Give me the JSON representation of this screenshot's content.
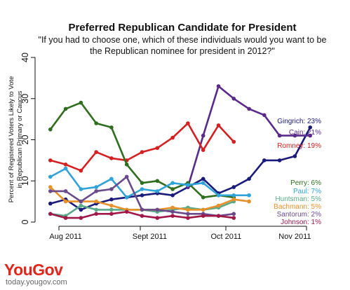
{
  "chart_data": {
    "type": "line",
    "title": "Preferred Republican Candidate for President",
    "subtitle": "\"If you had to choose one, which of these individuals would you want to be the Republican nominee for president in 2012?\"",
    "ylabel_line1": "Percent of Registered Voters Likely to Vote",
    "ylabel_line2": "in Republican Primary or Caucus",
    "ylim": [
      0,
      40
    ],
    "yticks": [
      "0",
      "10",
      "20",
      "30",
      "40"
    ],
    "xlim": [
      0,
      19
    ],
    "x_tick_labels": [
      {
        "label": "Aug 2011",
        "x": 2
      },
      {
        "label": "Sept 2011",
        "x": 7.5
      },
      {
        "label": "Oct 2011",
        "x": 12.5
      },
      {
        "label": "Nov 2011",
        "x": 17
      }
    ],
    "x": [
      1,
      2,
      3,
      4,
      5,
      6,
      7,
      8,
      9,
      10,
      11,
      12,
      13,
      14,
      15,
      16,
      17,
      18
    ],
    "series": [
      {
        "name": "Gingrich",
        "color": "#1a1a7a",
        "label": "Gingrich: 23%",
        "values": [
          4.5,
          5.5,
          3,
          4.5,
          5.5,
          6,
          6.5,
          7,
          6.5,
          8.5,
          10.5,
          7,
          8.5,
          10.5,
          15,
          15,
          16,
          23
        ]
      },
      {
        "name": "Cain",
        "color": "#5a2a8a",
        "label": "Cain: 21%",
        "values": [
          null,
          null,
          null,
          null,
          null,
          null,
          null,
          null,
          null,
          8.5,
          21,
          33,
          30,
          27.5,
          26,
          21,
          21,
          21
        ]
      },
      {
        "name": "Romney",
        "color": "#d42020",
        "label": "Romney: 19%",
        "values": [
          15,
          14,
          12.5,
          17,
          15.5,
          15,
          17,
          18,
          20.5,
          24,
          17.5,
          23.5,
          19.5,
          null,
          null,
          null,
          null,
          null
        ]
      },
      {
        "name": "Perry",
        "color": "#2e6e1e",
        "label": "Perry: 6%",
        "values": [
          22.5,
          27.5,
          29,
          24,
          23,
          14,
          9.5,
          10,
          8,
          9.5,
          6,
          6.5,
          6,
          null,
          null,
          null,
          null,
          null
        ]
      },
      {
        "name": "Paul",
        "color": "#2fa3d8",
        "label": "Paul: 7%",
        "values": [
          11,
          13,
          8,
          8.5,
          10.5,
          6,
          8,
          7.5,
          9.5,
          9,
          9.5,
          6.5,
          6.5,
          6.5,
          null,
          null,
          null,
          null
        ]
      },
      {
        "name": "Huntsman",
        "color": "#5aaa8a",
        "label": "Huntsman: 5%",
        "values": [
          2,
          1.5,
          4,
          3,
          3,
          3,
          3,
          2.5,
          3,
          3.5,
          3,
          3.5,
          5,
          null,
          null,
          null,
          null,
          null
        ]
      },
      {
        "name": "Bachmann",
        "color": "#e8902a",
        "label": "Bachmann: 5%",
        "values": [
          8.5,
          5,
          5,
          5,
          4,
          3,
          3,
          3,
          3.5,
          3,
          3,
          4,
          5.5,
          5,
          null,
          null,
          null,
          null
        ]
      },
      {
        "name": "Santorum",
        "color": "#6a4a8a",
        "label": "Santorum: 2%",
        "values": [
          7.5,
          7.5,
          5,
          7.5,
          8,
          11,
          3,
          3,
          2.5,
          2,
          2,
          1.5,
          2,
          null,
          null,
          null,
          null,
          null
        ]
      },
      {
        "name": "Johnson",
        "color": "#a01848",
        "label": "Johnson: 1%",
        "values": [
          2,
          1,
          1,
          2,
          2,
          2.5,
          1.5,
          1,
          1.5,
          1,
          1.5,
          1.5,
          1,
          null,
          null,
          null,
          null,
          null
        ]
      }
    ]
  },
  "branding": {
    "logo": "YouGov",
    "url": "today.yougov.com"
  }
}
